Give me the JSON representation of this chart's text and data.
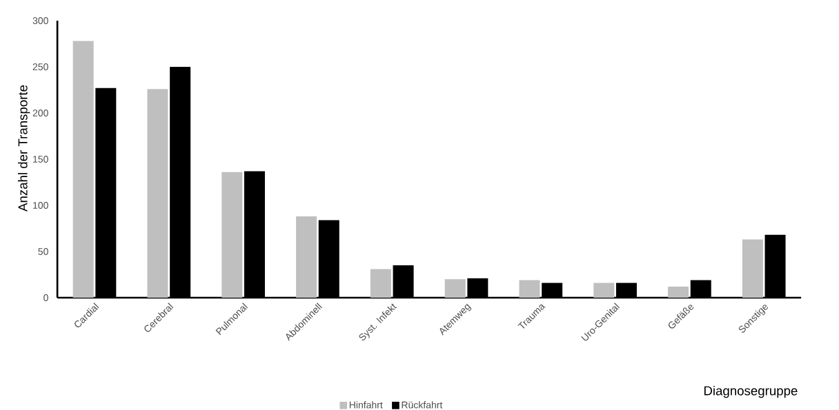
{
  "chart_data": {
    "type": "bar",
    "xlabel": "Diagnosegruppe",
    "ylabel": "Anzahl der Transporte",
    "categories": [
      "Cardial",
      "Cerebral",
      "Pulmonal",
      "Abdominell",
      "Syst. Infekt",
      "Atemweg",
      "Trauma",
      "Uro-Genital",
      "Gefäße",
      "Sonstige"
    ],
    "series": [
      {
        "name": "Hinfahrt",
        "color": "#bfbfbf",
        "values": [
          278,
          226,
          136,
          88,
          31,
          20,
          19,
          16,
          12,
          63
        ]
      },
      {
        "name": "Rückfahrt",
        "color": "#000000",
        "values": [
          227,
          250,
          137,
          84,
          35,
          21,
          16,
          16,
          19,
          68
        ]
      }
    ],
    "ylim": [
      0,
      300
    ],
    "yticks": [
      0,
      50,
      100,
      150,
      200,
      250,
      300
    ],
    "legend": "bottom"
  }
}
